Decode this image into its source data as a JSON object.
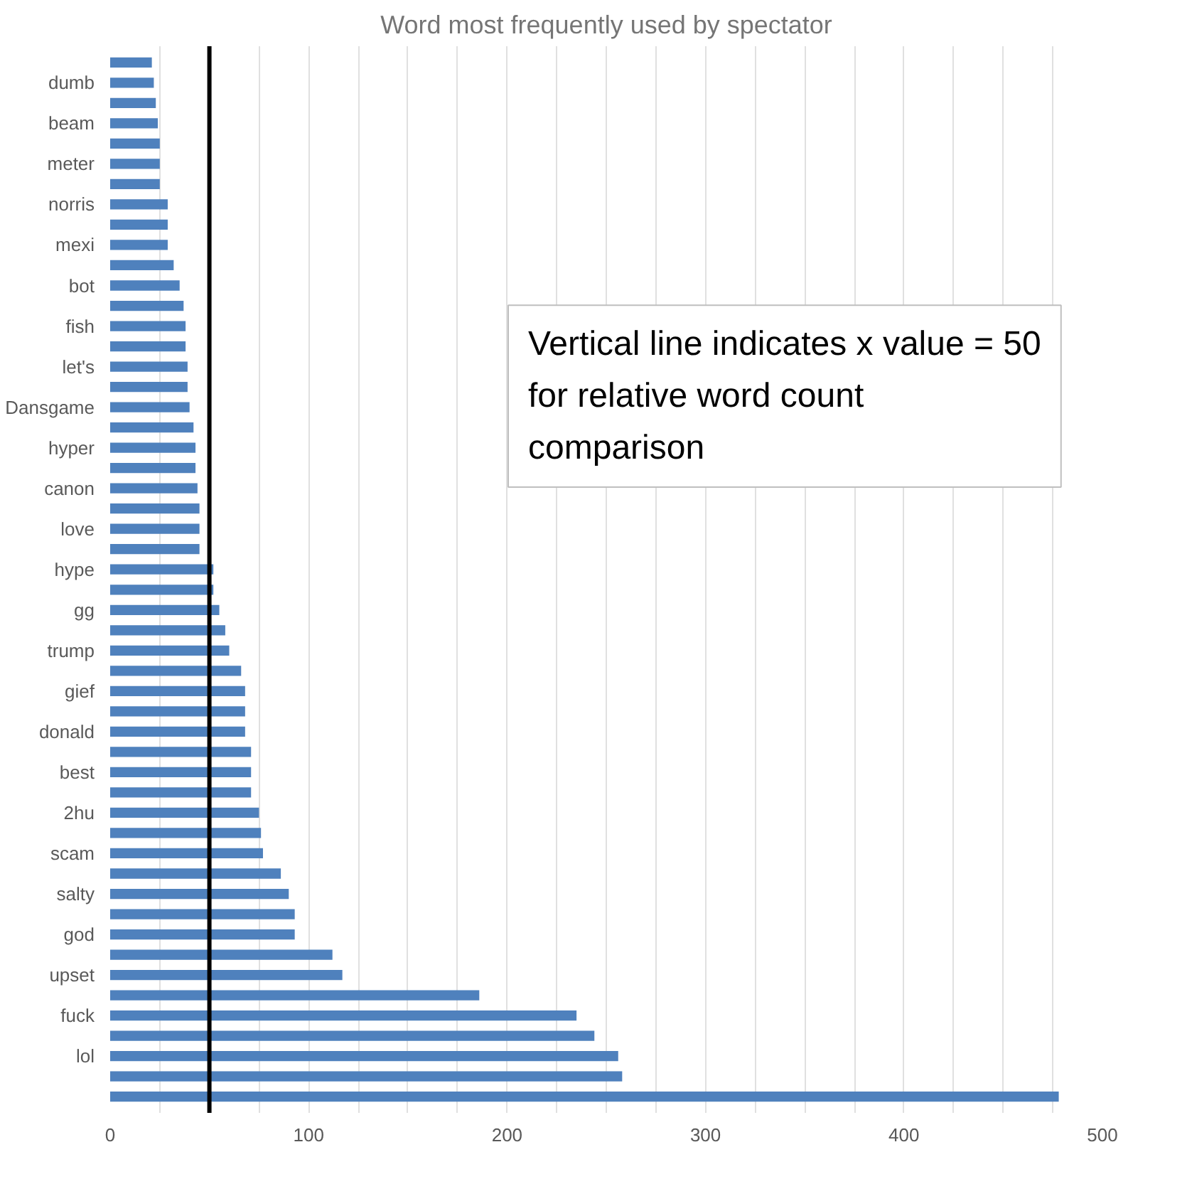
{
  "chart_data": {
    "type": "bar",
    "orientation": "horizontal",
    "title": "Word most frequently used by spectator",
    "categories": [
      null,
      "dumb",
      null,
      "beam",
      null,
      "meter",
      null,
      "norris",
      null,
      "mexi",
      null,
      "bot",
      null,
      "fish",
      null,
      "let's",
      null,
      "Dansgame",
      null,
      "hyper",
      null,
      "canon",
      null,
      "love",
      null,
      "hype",
      null,
      "gg",
      null,
      "trump",
      null,
      "gief",
      null,
      "donald",
      null,
      "best",
      null,
      "2hu",
      null,
      "scam",
      null,
      "salty",
      null,
      "god",
      null,
      "upset",
      null,
      "fuck",
      null,
      "lol",
      null,
      null
    ],
    "values": [
      21,
      22,
      23,
      24,
      25,
      25,
      25,
      29,
      29,
      29,
      32,
      35,
      37,
      38,
      38,
      39,
      39,
      40,
      42,
      43,
      43,
      44,
      45,
      45,
      45,
      52,
      52,
      55,
      58,
      60,
      66,
      68,
      68,
      68,
      71,
      71,
      71,
      75,
      76,
      77,
      86,
      90,
      93,
      93,
      112,
      117,
      186,
      235,
      244,
      256,
      258,
      478
    ],
    "color": "#4f81bd",
    "xlim": [
      0,
      500
    ],
    "xticks": [
      0,
      {
        "value": 25,
        "label": null
      },
      {
        "value": 50,
        "label": null
      },
      {
        "value": 75,
        "label": null
      },
      100,
      {
        "value": 125,
        "label": null
      },
      {
        "value": 150,
        "label": null
      },
      {
        "value": 175,
        "label": null
      },
      200,
      {
        "value": 225,
        "label": null
      },
      {
        "value": 250,
        "label": null
      },
      {
        "value": 275,
        "label": null
      },
      300,
      {
        "value": 325,
        "label": null
      },
      {
        "value": 350,
        "label": null
      },
      {
        "value": 375,
        "label": null
      },
      400,
      {
        "value": 425,
        "label": null
      },
      {
        "value": 450,
        "label": null
      },
      {
        "value": 475,
        "label": null
      },
      500
    ],
    "grid": "x",
    "ref_lines": [
      {
        "axis": "x",
        "value": 50,
        "color": "#000000"
      }
    ],
    "annotations": [
      "Vertical line indicates x value = 50\nfor relative word count\ncomparison"
    ]
  }
}
